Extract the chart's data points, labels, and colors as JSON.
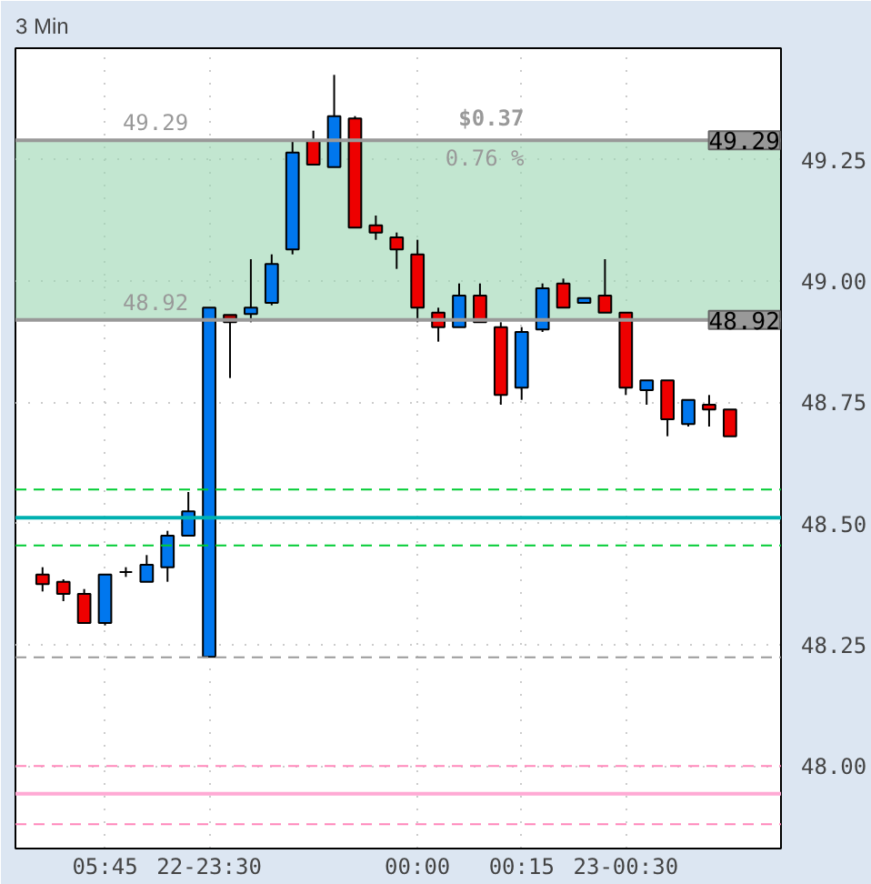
{
  "chart_data": {
    "type": "candlestick",
    "title": "3 Min",
    "categories": [
      null,
      null,
      null,
      "05:45",
      null,
      null,
      null,
      null,
      "22-23:30",
      null,
      null,
      null,
      null,
      null,
      null,
      null,
      null,
      null,
      "00:00",
      null,
      null,
      null,
      null,
      "00:15",
      null,
      null,
      null,
      null,
      "23-00:30",
      null,
      null,
      null,
      null,
      null
    ],
    "ohlc": [
      [
        48.395,
        48.41,
        48.36,
        48.375
      ],
      [
        48.38,
        48.385,
        48.34,
        48.355
      ],
      [
        48.355,
        48.365,
        48.295,
        48.295
      ],
      [
        48.295,
        48.395,
        48.29,
        48.395
      ],
      [
        48.4,
        48.41,
        48.39,
        48.4
      ],
      [
        48.38,
        48.435,
        48.38,
        48.415
      ],
      [
        48.41,
        48.485,
        48.38,
        48.475
      ],
      [
        48.475,
        48.565,
        48.475,
        48.525
      ],
      [
        48.225,
        48.945,
        48.225,
        48.945
      ],
      [
        48.93,
        48.93,
        48.8,
        48.915
      ],
      [
        48.932,
        49.045,
        48.915,
        48.945
      ],
      [
        48.955,
        49.055,
        48.95,
        49.035
      ],
      [
        49.065,
        49.29,
        49.055,
        49.265
      ],
      [
        49.29,
        49.31,
        49.24,
        49.24
      ],
      [
        49.235,
        49.425,
        49.235,
        49.34
      ],
      [
        49.335,
        49.34,
        49.11,
        49.11
      ],
      [
        49.115,
        49.135,
        49.085,
        49.1
      ],
      [
        49.09,
        49.1,
        49.025,
        49.065
      ],
      [
        49.055,
        49.085,
        48.915,
        48.945
      ],
      [
        48.935,
        48.945,
        48.875,
        48.905
      ],
      [
        48.905,
        48.995,
        48.905,
        48.97
      ],
      [
        48.97,
        48.995,
        48.915,
        48.915
      ],
      [
        48.905,
        48.915,
        48.745,
        48.765
      ],
      [
        48.78,
        48.905,
        48.755,
        48.895
      ],
      [
        48.9,
        48.995,
        48.895,
        48.985
      ],
      [
        48.995,
        49.005,
        48.945,
        48.945
      ],
      [
        48.955,
        48.965,
        48.955,
        48.965
      ],
      [
        48.97,
        49.045,
        48.935,
        48.935
      ],
      [
        48.935,
        48.935,
        48.765,
        48.78
      ],
      [
        48.775,
        48.795,
        48.745,
        48.795
      ],
      [
        48.795,
        48.795,
        48.68,
        48.715
      ],
      [
        48.705,
        48.755,
        48.7,
        48.755
      ],
      [
        48.745,
        48.765,
        48.7,
        48.735
      ],
      [
        48.735,
        48.735,
        48.68,
        48.68
      ]
    ],
    "colors": [
      "#ee0000",
      "#ee0000",
      "#ee0000",
      "#0077ee",
      "#000000",
      "#0077ee",
      "#0077ee",
      "#0077ee",
      "#0077ee",
      "#aa0000",
      "#0077ee",
      "#0077ee",
      "#0077ee",
      "#ee0000",
      "#0077ee",
      "#ee0000",
      "#ee0000",
      "#ee0000",
      "#ee0000",
      "#ee0000",
      "#0077ee",
      "#ee0000",
      "#ee0000",
      "#0077ee",
      "#0077ee",
      "#ee0000",
      "#0077ee",
      "#ee0000",
      "#ee0000",
      "#0077ee",
      "#ee0000",
      "#0077ee",
      "#ee0000",
      "#ee0000"
    ],
    "ylim": [
      47.83,
      49.48
    ],
    "yticks": [
      {
        "value": 48.0,
        "label": "48.00"
      },
      {
        "value": 48.25,
        "label": "48.25"
      },
      {
        "value": 48.5,
        "label": "48.50"
      },
      {
        "value": 48.75,
        "label": "48.75"
      },
      {
        "value": 49.0,
        "label": "49.00"
      },
      {
        "value": 49.25,
        "label": "49.25"
      }
    ],
    "grid": true,
    "ref_lines": [
      {
        "axis": "y",
        "value": 48.57,
        "color": "#00cc33",
        "line_style": "dashed"
      },
      {
        "axis": "y",
        "value": 48.512,
        "color": "#00b0b0",
        "line_style": "solid"
      },
      {
        "axis": "y",
        "value": 48.455,
        "color": "#00cc33",
        "line_style": "dashed"
      },
      {
        "axis": "y",
        "value": 48.224,
        "color": "#999999",
        "line_style": "dashed"
      },
      {
        "axis": "y",
        "value": 48.0,
        "color": "#ff88bb",
        "line_style": "dashed"
      },
      {
        "axis": "y",
        "value": 47.943,
        "color": "#ffaad4",
        "line_style": "solid"
      },
      {
        "axis": "y",
        "value": 47.88,
        "color": "#ff88bb",
        "line_style": "dashed"
      },
      {
        "axis": "y",
        "value": 49.29,
        "label": "49.29",
        "color": "#999999",
        "line_style": "solid"
      },
      {
        "axis": "y",
        "value": 48.92,
        "label": "48.92",
        "color": "#999999",
        "line_style": "solid"
      }
    ],
    "bands": [
      {
        "axis": "y",
        "from": 48.92,
        "to": 49.29,
        "color": "#9ad6b0"
      }
    ],
    "annotations": [
      {
        "text": "$0.37",
        "y": 49.29
      },
      {
        "text": "0.76 %",
        "y": 49.29
      },
      {
        "text": "49.29",
        "y": 49.29
      },
      {
        "text": "48.92",
        "y": 48.92
      }
    ]
  }
}
